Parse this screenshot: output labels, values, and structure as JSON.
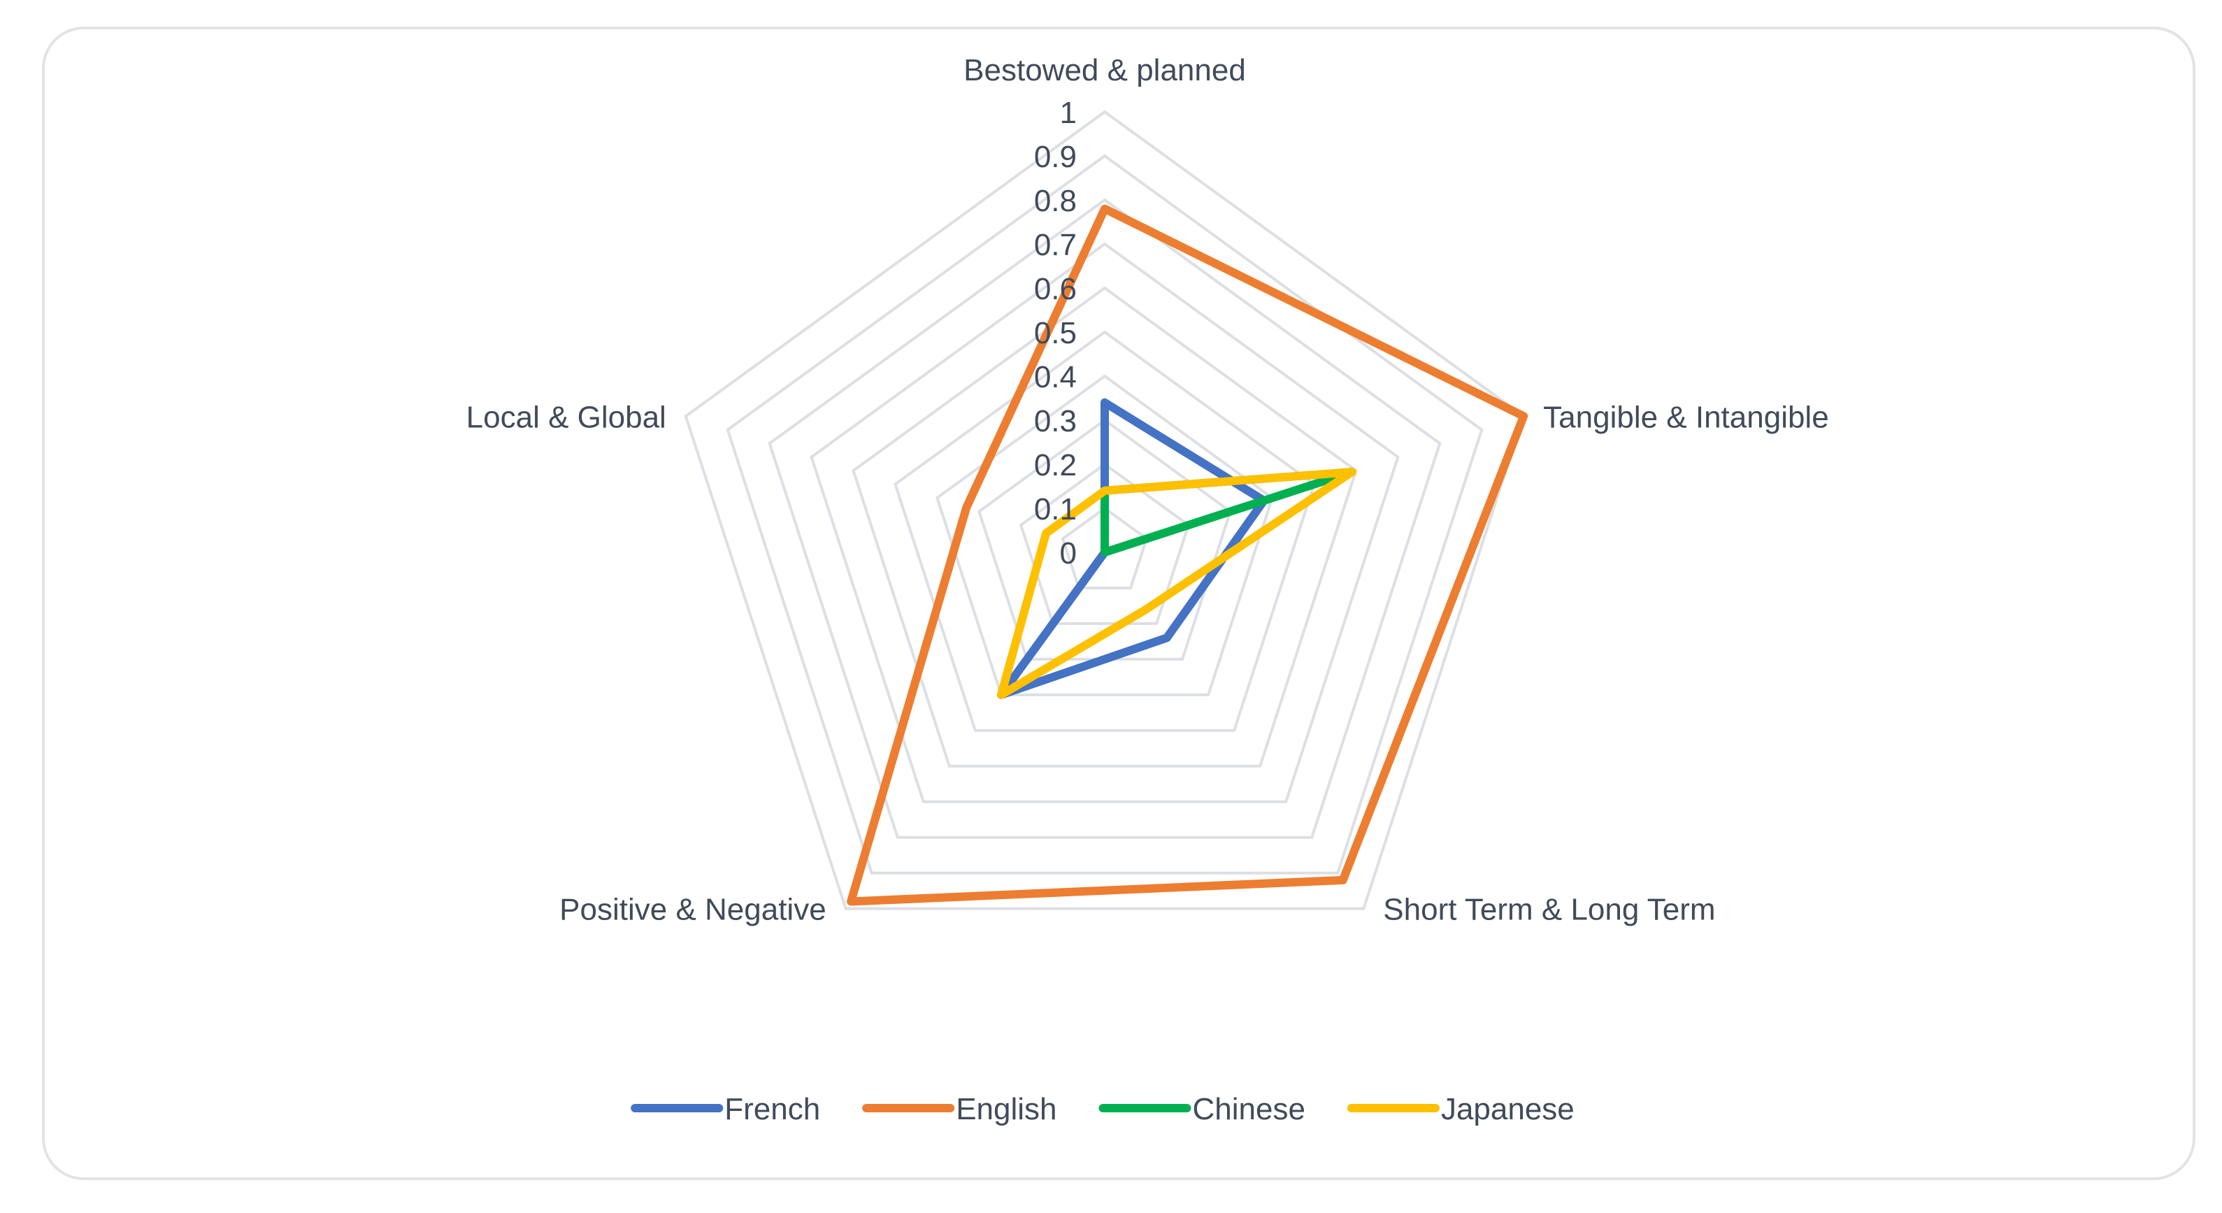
{
  "chart_data": {
    "type": "radar",
    "title": "",
    "axes": [
      "Bestowed & planned",
      "Tangible & Intangible",
      "Short Term & Long Term",
      "Positive & Negative",
      "Local & Global"
    ],
    "rlim": [
      0,
      1
    ],
    "ticks": [
      "0",
      "0.1",
      "0.2",
      "0.3",
      "0.4",
      "0.5",
      "0.6",
      "0.7",
      "0.8",
      "0.9",
      "1"
    ],
    "grid": true,
    "legend_position": "bottom",
    "series": [
      {
        "name": "French",
        "color": "#4472c4",
        "values": [
          0.34,
          0.38,
          0.24,
          0.4,
          0.0
        ]
      },
      {
        "name": "English",
        "color": "#ed7d31",
        "values": [
          0.78,
          1.0,
          0.92,
          0.98,
          0.33
        ]
      },
      {
        "name": "Chinese",
        "color": "#00b050",
        "values": [
          0.14,
          0.59,
          0.0,
          0.0,
          0.0
        ]
      },
      {
        "name": "Japanese",
        "color": "#ffc000",
        "values": [
          0.14,
          0.59,
          0.16,
          0.4,
          0.14
        ]
      }
    ]
  }
}
